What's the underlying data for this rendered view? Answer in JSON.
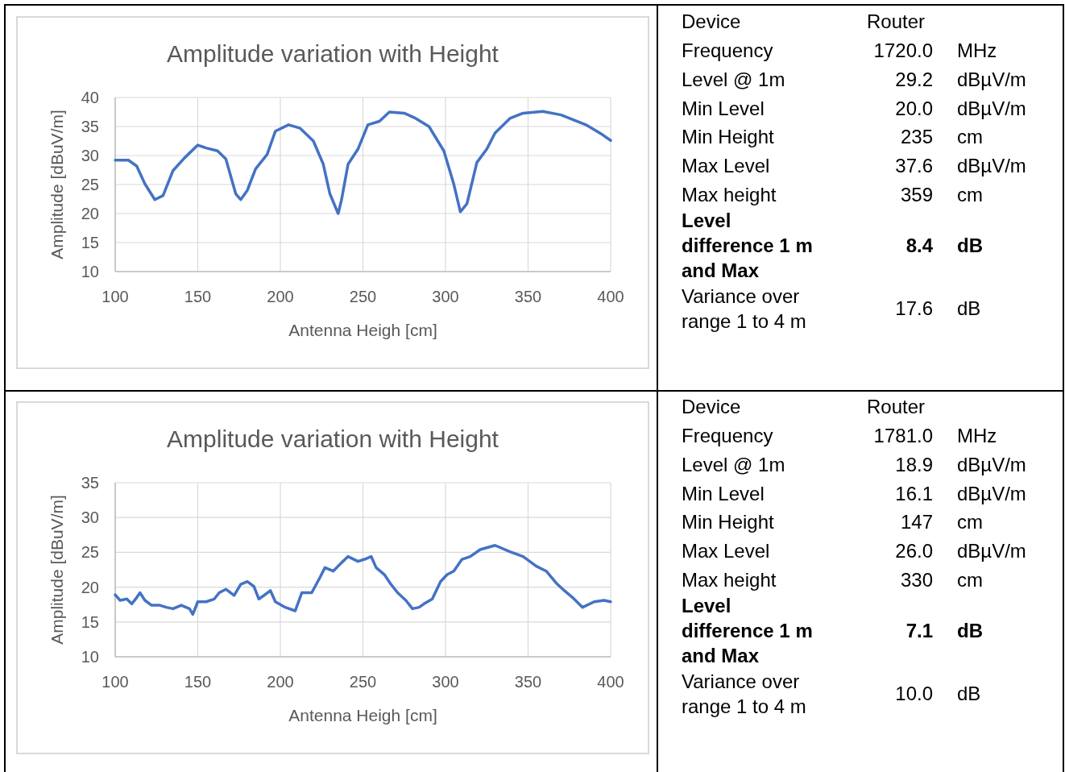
{
  "chart_data": [
    {
      "type": "line",
      "title": "Amplitude variation with Height",
      "xlabel": "Antenna Heigh [cm]",
      "ylabel": "Amplitude [dBuV/m]",
      "xlim": [
        100,
        400
      ],
      "xticks": [
        100,
        150,
        200,
        250,
        300,
        350,
        400
      ],
      "ylim": [
        10,
        40
      ],
      "yticks": [
        10,
        15,
        20,
        25,
        30,
        35,
        40
      ],
      "grid": true,
      "series": [
        {
          "color": "#4472c4",
          "x": [
            100,
            108,
            113,
            118,
            124,
            129,
            135,
            142,
            150,
            155,
            162,
            167,
            173,
            176,
            180,
            185,
            192,
            197,
            205,
            212,
            220,
            226,
            230,
            235,
            237,
            241,
            247,
            253,
            260,
            266,
            275,
            282,
            290,
            299,
            305,
            309,
            313,
            319,
            325,
            330,
            339,
            347,
            359,
            370,
            385,
            395,
            400
          ],
          "values": [
            29.2,
            29.2,
            28.2,
            25.1,
            22.4,
            23.1,
            27.4,
            29.6,
            31.8,
            31.3,
            30.8,
            29.4,
            23.4,
            22.4,
            24.0,
            27.7,
            30.2,
            34.2,
            35.3,
            34.7,
            32.5,
            28.5,
            23.4,
            20.0,
            22.3,
            28.5,
            31.1,
            35.3,
            35.9,
            37.5,
            37.3,
            36.4,
            35.0,
            30.8,
            25.1,
            20.3,
            21.7,
            28.8,
            31.1,
            33.9,
            36.4,
            37.3,
            37.6,
            37.0,
            35.3,
            33.6,
            32.6
          ]
        }
      ]
    },
    {
      "type": "other",
      "categories": [
        "Device",
        "Frequency",
        "Level @ 1m",
        "Min Level",
        "Min Height",
        "Max Level",
        "Max height",
        "Level difference 1 m and Max",
        "Variance over range 1 to 4 m"
      ],
      "annotations": [
        "Router",
        "1720.0",
        "29.2",
        "20.0",
        "235",
        "37.6",
        "359",
        "8.4",
        "17.6",
        "MHz",
        "dBµV/m",
        "dBµV/m",
        "cm",
        "dBµV/m",
        "cm",
        "dB",
        "dB"
      ]
    },
    {
      "type": "line",
      "title": "Amplitude variation with Height",
      "xlabel": "Antenna Heigh [cm]",
      "ylabel": "Amplitude [dBuV/m]",
      "xlim": [
        100,
        400
      ],
      "xticks": [
        100,
        150,
        200,
        250,
        300,
        350,
        400
      ],
      "ylim": [
        10,
        35
      ],
      "yticks": [
        10,
        15,
        20,
        25,
        30,
        35
      ],
      "grid": true,
      "series": [
        {
          "color": "#4472c4",
          "x": [
            100,
            103,
            107,
            110,
            113,
            115,
            118,
            122,
            127,
            131,
            135,
            140,
            145,
            147,
            150,
            155,
            160,
            163,
            167,
            172,
            176,
            180,
            184,
            187,
            190,
            194,
            197,
            203,
            209,
            213,
            219,
            224,
            227,
            232,
            237,
            241,
            247,
            251,
            255,
            258,
            263,
            267,
            271,
            276,
            280,
            284,
            287,
            292,
            297,
            301,
            305,
            310,
            315,
            321,
            330,
            339,
            347,
            355,
            361,
            367,
            372,
            377,
            383,
            390,
            396,
            400
          ],
          "values": [
            18.9,
            18.1,
            18.3,
            17.6,
            18.5,
            19.2,
            18.1,
            17.4,
            17.4,
            17.1,
            16.9,
            17.4,
            16.9,
            16.1,
            17.9,
            17.9,
            18.3,
            19.2,
            19.7,
            18.8,
            20.4,
            20.8,
            20.1,
            18.3,
            18.8,
            19.5,
            17.9,
            17.1,
            16.6,
            19.2,
            19.2,
            21.4,
            22.8,
            22.3,
            23.5,
            24.4,
            23.7,
            24.0,
            24.4,
            22.8,
            21.8,
            20.4,
            19.2,
            18.1,
            16.9,
            17.1,
            17.6,
            18.3,
            20.8,
            21.8,
            22.3,
            24.0,
            24.4,
            25.4,
            26.0,
            25.1,
            24.4,
            23.0,
            22.3,
            20.6,
            19.5,
            18.5,
            17.1,
            17.9,
            18.1,
            17.9
          ]
        }
      ]
    },
    {
      "type": "other",
      "categories": [
        "Device",
        "Frequency",
        "Level @ 1m",
        "Min Level",
        "Min Height",
        "Max Level",
        "Max height",
        "Level difference 1 m and Max",
        "Variance over range 1 to 4 m"
      ],
      "annotations": [
        "Router",
        "1781.0",
        "18.9",
        "16.1",
        "147",
        "26.0",
        "330",
        "7.1",
        "10.0",
        "MHz",
        "dBµV/m",
        "dBµV/m",
        "cm",
        "dBµV/m",
        "cm",
        "dB",
        "dB"
      ]
    }
  ]
}
